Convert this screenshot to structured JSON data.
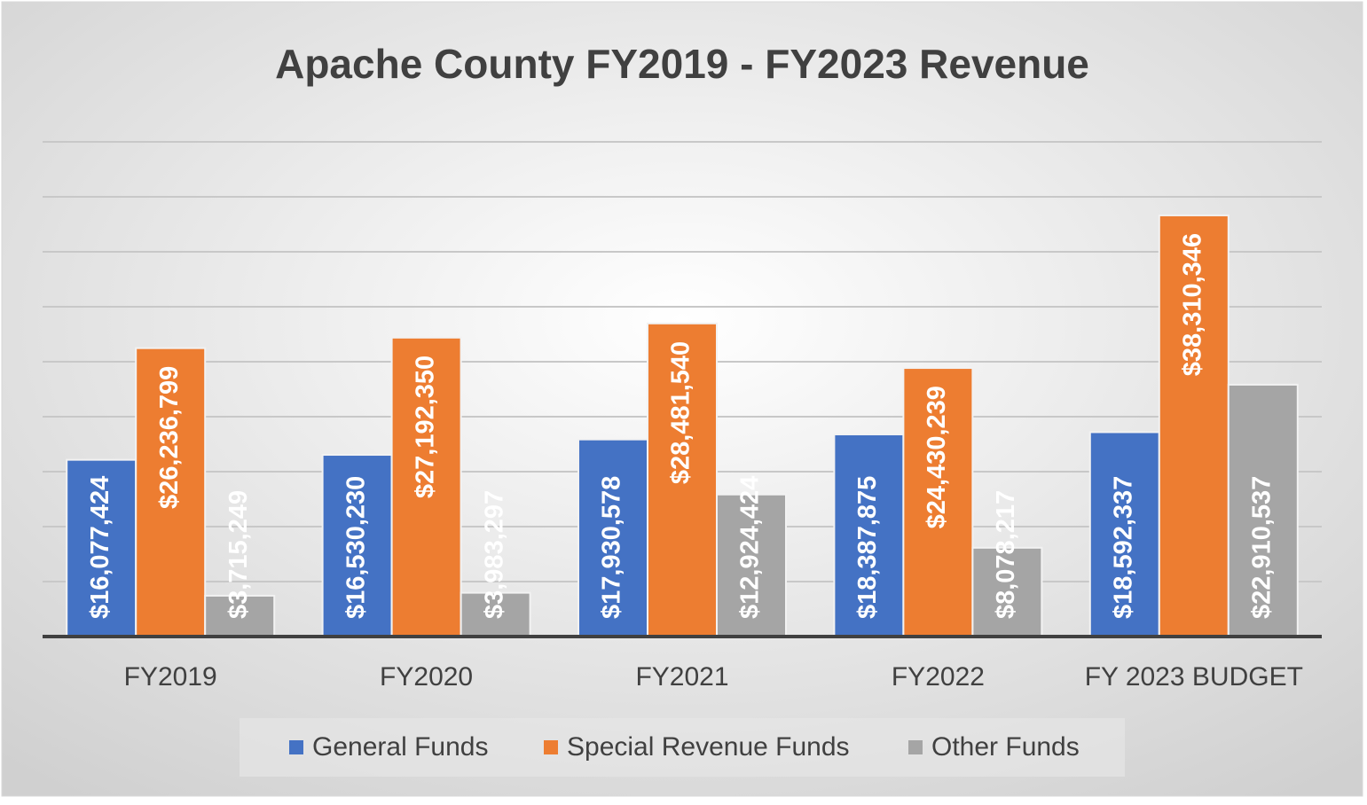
{
  "chart_data": {
    "type": "bar",
    "title": "Apache County FY2019 - FY2023 Revenue",
    "categories": [
      "FY2019",
      "FY2020",
      "FY2021",
      "FY2022",
      "FY 2023 BUDGET"
    ],
    "series": [
      {
        "name": "General Funds",
        "color": "#4472c4",
        "values": [
          16077424,
          16530230,
          17930578,
          18387875,
          18592337
        ],
        "value_labels": [
          "$16,077,424",
          "$16,530,230",
          "$17,930,578",
          "$18,387,875",
          "$18,592,337"
        ]
      },
      {
        "name": "Special Revenue Funds",
        "color": "#ed7d31",
        "values": [
          26236799,
          27192350,
          28481540,
          24430239,
          38310346
        ],
        "value_labels": [
          "$26,236,799",
          "$27,192,350",
          "$28,481,540",
          "$24,430,239",
          "$38,310,346"
        ]
      },
      {
        "name": "Other Funds",
        "color": "#a5a5a5",
        "values": [
          3715249,
          3983297,
          12924424,
          8078217,
          22910537
        ],
        "value_labels": [
          "$3,715,249",
          "$3,983,297",
          "$12,924,424",
          "$8,078,217",
          "$22,910,537"
        ]
      }
    ],
    "ylim": [
      0,
      45000000
    ],
    "yticks": [
      0,
      5000000,
      10000000,
      15000000,
      20000000,
      25000000,
      30000000,
      35000000,
      40000000,
      45000000
    ],
    "grid": true,
    "legend": "bottom"
  }
}
